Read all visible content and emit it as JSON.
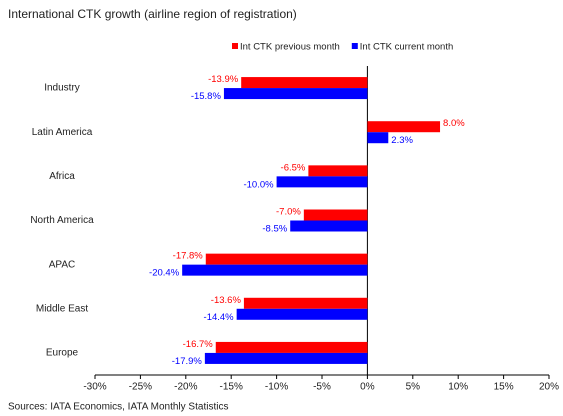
{
  "chart_data": {
    "type": "hbar",
    "title": "International CTK growth (airline region of registration)",
    "source": "Sources: IATA Economics, IATA Monthly Statistics",
    "categories": [
      "Industry",
      "Latin America",
      "Africa",
      "North America",
      "APAC",
      "Middle East",
      "Europe"
    ],
    "series": [
      {
        "name": "Int CTK previous month",
        "color": "#ff0000",
        "values": [
          -13.9,
          8.0,
          -6.5,
          -7.0,
          -17.8,
          -13.6,
          -16.7
        ],
        "value_labels": [
          "-13.9%",
          "8.0%",
          "-6.5%",
          "-7.0%",
          "-17.8%",
          "-13.6%",
          "-16.7%"
        ]
      },
      {
        "name": "Int CTK current month",
        "color": "#0000ff",
        "values": [
          -15.8,
          2.3,
          -10.0,
          -8.5,
          -20.4,
          -14.4,
          -17.9
        ],
        "value_labels": [
          "-15.8%",
          "2.3%",
          "-10.0%",
          "-8.5%",
          "-20.4%",
          "-14.4%",
          "-17.9%"
        ]
      }
    ],
    "xlim": [
      -30,
      20
    ],
    "xticks": [
      {
        "value": -30,
        "label": "-30%"
      },
      {
        "value": -25,
        "label": "-25%"
      },
      {
        "value": -20,
        "label": "-20%"
      },
      {
        "value": -15,
        "label": "-15%"
      },
      {
        "value": -10,
        "label": "-10%"
      },
      {
        "value": -5,
        "label": "-5%"
      },
      {
        "value": 0,
        "label": "0%"
      },
      {
        "value": 5,
        "label": "5%"
      },
      {
        "value": 10,
        "label": "10%"
      },
      {
        "value": 15,
        "label": "15%"
      },
      {
        "value": 20,
        "label": "20%"
      }
    ],
    "legend": "top"
  }
}
